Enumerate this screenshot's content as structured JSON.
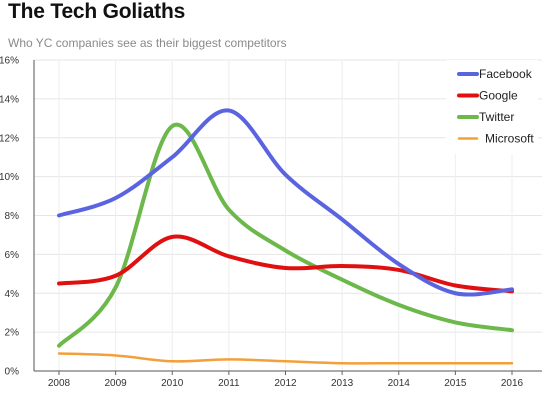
{
  "title": "The Tech Goliaths",
  "subtitle": "Who YC companies see as their biggest competitors",
  "chart_data": {
    "type": "line",
    "x": [
      "2008",
      "2009",
      "2010",
      "2011",
      "2012",
      "2013",
      "2014",
      "2015",
      "2016"
    ],
    "xlim": [
      2008,
      2016
    ],
    "ylim": [
      0,
      16
    ],
    "y_ticks": [
      "0%",
      "2%",
      "4%",
      "6%",
      "8%",
      "10%",
      "12%",
      "14%",
      "16%"
    ],
    "grid": true,
    "legend_position": "top-right",
    "series": [
      {
        "name": "Facebook",
        "color": "#5a63e0",
        "values": [
          8.0,
          8.9,
          11.0,
          13.4,
          10.1,
          7.8,
          5.5,
          4.0,
          4.2
        ]
      },
      {
        "name": "Google",
        "color": "#e01010",
        "values": [
          4.5,
          4.9,
          6.9,
          5.9,
          5.3,
          5.4,
          5.2,
          4.4,
          4.1
        ]
      },
      {
        "name": "Twitter",
        "color": "#6cb84a",
        "values": [
          1.3,
          4.3,
          12.6,
          8.3,
          6.2,
          4.7,
          3.4,
          2.5,
          2.1
        ]
      },
      {
        "name": "Microsoft",
        "color": "#f4a03a",
        "values": [
          0.9,
          0.8,
          0.5,
          0.6,
          0.5,
          0.4,
          0.4,
          0.4,
          0.4
        ]
      }
    ]
  }
}
